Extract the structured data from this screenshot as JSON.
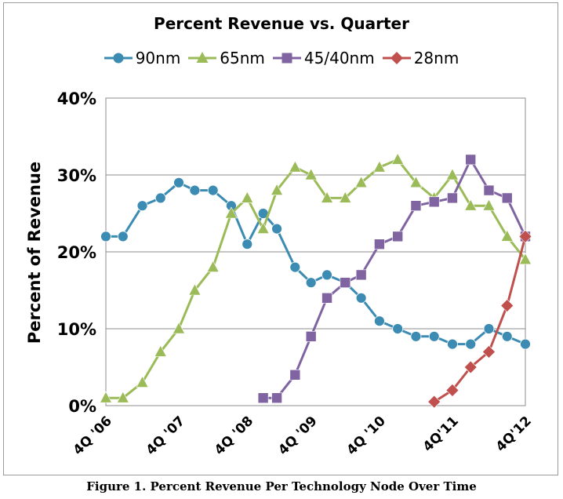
{
  "caption": "Figure 1. Percent Revenue Per Technology Node Over Time",
  "chart_data": {
    "type": "line",
    "title": "Percent Revenue vs. Quarter",
    "xlabel": "",
    "ylabel": "Percent of Revenue",
    "ylim": [
      0,
      40
    ],
    "yticks": [
      "0%",
      "10%",
      "20%",
      "30%",
      "40%"
    ],
    "x_tick_labels": [
      {
        "index": 0,
        "label": "4Q '06"
      },
      {
        "index": 4,
        "label": "4Q '07"
      },
      {
        "index": 8,
        "label": "4Q '08"
      },
      {
        "index": 12,
        "label": "4Q '09"
      },
      {
        "index": 16,
        "label": "4Q '10"
      },
      {
        "index": 20,
        "label": "4Q'11"
      },
      {
        "index": 24,
        "label": "4Q'12"
      }
    ],
    "grid": true,
    "legend_position": "top",
    "series": [
      {
        "name": "90nm",
        "color": "#3b8bb3",
        "marker": "circle",
        "x": [
          0,
          0.75,
          1.6,
          2.4,
          3.2,
          3.9,
          4.7,
          5.5,
          6.2,
          6.9,
          7.5,
          8.3,
          9.0,
          9.7,
          10.5,
          11.2,
          12.0,
          12.8,
          13.6,
          14.4,
          15.2,
          16.0,
          16.8,
          17.6,
          18.4
        ],
        "values": [
          22,
          22,
          26,
          27,
          29,
          28,
          28,
          26,
          21,
          25,
          23,
          18,
          16,
          17,
          16,
          14,
          11,
          10,
          9,
          9,
          8,
          8,
          10,
          9,
          8
        ]
      },
      {
        "name": "65nm",
        "color": "#9bbb59",
        "marker": "triangle",
        "x": [
          0,
          0.75,
          1.6,
          2.4,
          3.2,
          3.9,
          4.7,
          5.5,
          6.2,
          6.9,
          7.5,
          8.3,
          9.0,
          9.7,
          10.5,
          11.2,
          12.0,
          12.8,
          13.6,
          14.4,
          15.2,
          16.0,
          16.8,
          17.6,
          18.4
        ],
        "values": [
          1,
          1,
          3,
          7,
          10,
          15,
          18,
          25,
          27,
          23,
          28,
          31,
          30,
          27,
          27,
          29,
          31,
          32,
          29,
          27,
          30,
          26,
          26,
          22,
          19
        ]
      },
      {
        "name": "45/40nm",
        "color": "#8064a2",
        "marker": "square",
        "x": [
          6.9,
          7.5,
          8.3,
          9.0,
          9.7,
          10.5,
          11.2,
          12.0,
          12.8,
          13.6,
          14.4,
          15.2,
          16.0,
          16.8,
          17.6,
          18.4
        ],
        "values": [
          1,
          1,
          4,
          9,
          14,
          16,
          17,
          21,
          22,
          26,
          26.5,
          27,
          32,
          28,
          27,
          22
        ]
      },
      {
        "name": "28nm",
        "color": "#c0504d",
        "marker": "diamond",
        "x": [
          14.4,
          15.2,
          16.0,
          16.8,
          17.6,
          18.4
        ],
        "values": [
          0.5,
          2,
          5,
          7,
          13,
          22
        ]
      }
    ]
  }
}
